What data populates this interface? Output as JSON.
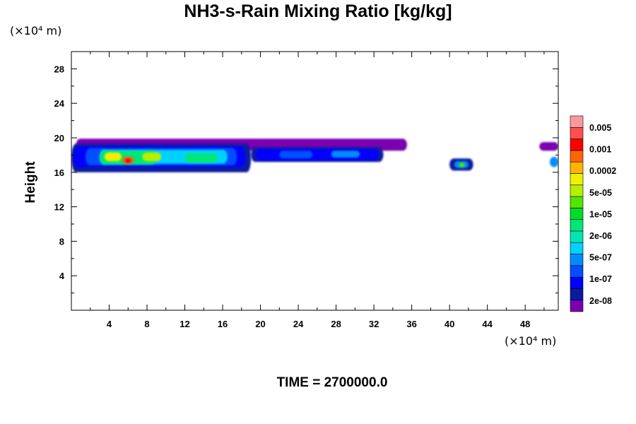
{
  "chart_data": {
    "type": "heatmap",
    "title": "NH3-s-Rain Mixing Ratio [kg/kg]",
    "ylabel": "Height",
    "x_unit": "(×10⁴ m)",
    "y_unit": "(×10⁴ m)",
    "xlim": [
      0,
      51.5
    ],
    "ylim": [
      0,
      30
    ],
    "x_ticks": [
      4,
      8,
      12,
      16,
      20,
      24,
      28,
      32,
      36,
      40,
      44,
      48
    ],
    "y_ticks": [
      4,
      8,
      12,
      16,
      20,
      24,
      28
    ],
    "colorbar": {
      "labels": [
        "0.005",
        "0.001",
        "0.0002",
        "5e-05",
        "1e-05",
        "2e-06",
        "5e-07",
        "1e-07",
        "2e-08"
      ],
      "colors_bottom_to_top": [
        "#7a00b0",
        "#0a1aa0",
        "#0000ff",
        "#0050ff",
        "#008cff",
        "#00d2ff",
        "#00e6b4",
        "#00e678",
        "#00dc28",
        "#50e600",
        "#b4f000",
        "#f0f000",
        "#ffb400",
        "#ff6400",
        "#ff0000",
        "#ff5050",
        "#ff96a0"
      ]
    },
    "cells": [
      {
        "x": 0.5,
        "y": 18.5,
        "w": 35.0,
        "h": 1.4,
        "level": 0
      },
      {
        "x": 0.0,
        "y": 16.0,
        "w": 19.0,
        "h": 3.3,
        "level": 1
      },
      {
        "x": 19.0,
        "y": 17.2,
        "w": 14.0,
        "h": 1.7,
        "level": 1
      },
      {
        "x": 0.2,
        "y": 16.6,
        "w": 18.2,
        "h": 2.4,
        "level": 2
      },
      {
        "x": 19.5,
        "y": 17.4,
        "w": 13.0,
        "h": 1.3,
        "level": 2
      },
      {
        "x": 1.5,
        "y": 16.8,
        "w": 16.0,
        "h": 2.0,
        "level": 3
      },
      {
        "x": 22.0,
        "y": 17.6,
        "w": 3.5,
        "h": 0.9,
        "level": 3
      },
      {
        "x": 27.5,
        "y": 17.7,
        "w": 3.0,
        "h": 0.8,
        "level": 4
      },
      {
        "x": 3.0,
        "y": 17.0,
        "w": 13.5,
        "h": 1.6,
        "level": 5
      },
      {
        "x": 3.0,
        "y": 16.9,
        "w": 6.0,
        "h": 1.6,
        "level": 7
      },
      {
        "x": 12.0,
        "y": 17.1,
        "w": 3.5,
        "h": 1.1,
        "level": 7
      },
      {
        "x": 3.5,
        "y": 17.3,
        "w": 1.8,
        "h": 1.0,
        "level": 11
      },
      {
        "x": 7.5,
        "y": 17.3,
        "w": 2.0,
        "h": 1.0,
        "level": 10
      },
      {
        "x": 5.4,
        "y": 17.0,
        "w": 1.2,
        "h": 0.8,
        "level": 13
      },
      {
        "x": 5.7,
        "y": 17.1,
        "w": 0.6,
        "h": 0.5,
        "level": 14
      },
      {
        "x": 40.0,
        "y": 16.2,
        "w": 2.5,
        "h": 1.4,
        "level": 1
      },
      {
        "x": 40.5,
        "y": 16.5,
        "w": 1.5,
        "h": 0.8,
        "level": 4
      },
      {
        "x": 41.0,
        "y": 16.6,
        "w": 0.6,
        "h": 0.5,
        "level": 9
      },
      {
        "x": 49.5,
        "y": 18.5,
        "w": 2.0,
        "h": 1.0,
        "level": 0
      },
      {
        "x": 50.6,
        "y": 16.6,
        "w": 0.9,
        "h": 1.2,
        "level": 4
      }
    ]
  },
  "footer": {
    "time_label": "TIME = 2700000.0"
  }
}
